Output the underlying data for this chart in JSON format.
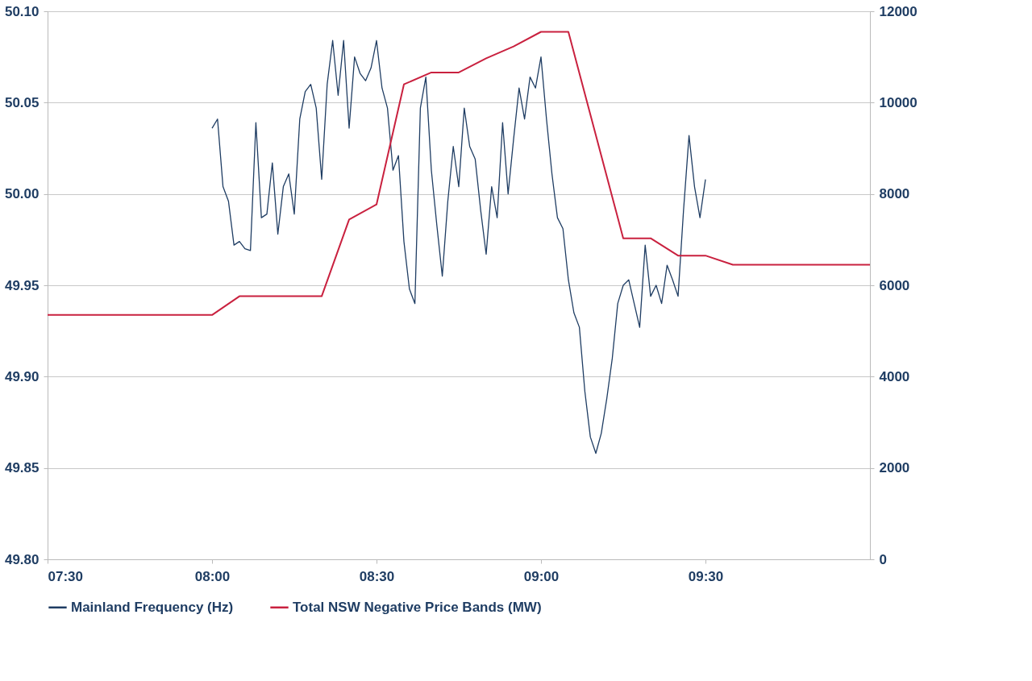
{
  "chart_data": {
    "type": "line",
    "xlim": [
      7.5,
      10
    ],
    "xticks": [
      {
        "value": 7.5,
        "label": "07:30"
      },
      {
        "value": 8,
        "label": "08:00"
      },
      {
        "value": 8.5,
        "label": "08:30"
      },
      {
        "value": 9,
        "label": "09:00"
      },
      {
        "value": 9.5,
        "label": "09:30"
      }
    ],
    "ylim": [
      49.8,
      50.1
    ],
    "yticks": [
      {
        "value": 49.8,
        "label": "49.80"
      },
      {
        "value": 49.85,
        "label": "49.85"
      },
      {
        "value": 49.9,
        "label": "49.90"
      },
      {
        "value": 49.95,
        "label": "49.95"
      },
      {
        "value": 50,
        "label": "50.00"
      },
      {
        "value": 50.05,
        "label": "50.05"
      },
      {
        "value": 50.1,
        "label": "50.10"
      }
    ],
    "y2lim": [
      0,
      12000
    ],
    "y2ticks": [
      0,
      2000,
      4000,
      6000,
      8000,
      10000,
      12000
    ],
    "grid": "y",
    "legend": "bottom",
    "series": [
      {
        "name": "Mainland Frequency (Hz)",
        "color": "#1f3d63",
        "x": [
          8,
          8.0167,
          8.0333,
          8.05,
          8.0667,
          8.0833,
          8.1,
          8.1167,
          8.1333,
          8.15,
          8.1667,
          8.1833,
          8.2,
          8.2167,
          8.2333,
          8.25,
          8.2667,
          8.2833,
          8.3,
          8.3167,
          8.3333,
          8.35,
          8.3667,
          8.3833,
          8.4,
          8.4167,
          8.4333,
          8.45,
          8.4667,
          8.4833,
          8.5,
          8.5167,
          8.5333,
          8.55,
          8.5667,
          8.5833,
          8.6,
          8.6167,
          8.6333,
          8.65,
          8.6667,
          8.6833,
          8.7,
          8.7167,
          8.7333,
          8.75,
          8.7667,
          8.7833,
          8.8,
          8.8167,
          8.8333,
          8.85,
          8.8667,
          8.8833,
          8.9,
          8.9167,
          8.9333,
          8.95,
          8.9667,
          8.9833,
          9,
          9.0167,
          9.0333,
          9.05,
          9.0667,
          9.0833,
          9.1,
          9.1167,
          9.1333,
          9.15,
          9.1667,
          9.1833,
          9.2,
          9.2167,
          9.2333,
          9.25,
          9.2667,
          9.2833,
          9.3,
          9.3167,
          9.3333,
          9.35,
          9.3667,
          9.3833,
          9.4,
          9.4167,
          9.4333,
          9.45,
          9.4667,
          9.4833,
          9.5
        ],
        "values": [
          50.036,
          50.041,
          50.004,
          49.996,
          49.972,
          49.974,
          49.97,
          49.969,
          50.039,
          49.987,
          49.989,
          50.017,
          49.978,
          50.004,
          50.011,
          49.989,
          50.041,
          50.056,
          50.06,
          50.047,
          50.008,
          50.06,
          50.084,
          50.054,
          50.084,
          50.036,
          50.075,
          50.066,
          50.062,
          50.069,
          50.084,
          50.058,
          50.047,
          50.013,
          50.021,
          49.974,
          49.948,
          49.94,
          50.047,
          50.064,
          50.013,
          49.983,
          49.955,
          49.996,
          50.026,
          50.004,
          50.047,
          50.026,
          50.019,
          49.991,
          49.967,
          50.004,
          49.987,
          50.039,
          50.0,
          50.03,
          50.058,
          50.041,
          50.064,
          50.058,
          50.075,
          50.041,
          50.011,
          49.987,
          49.981,
          49.953,
          49.935,
          49.927,
          49.892,
          49.867,
          49.858,
          49.869,
          49.888,
          49.91,
          49.94,
          49.95,
          49.953,
          49.94,
          49.927,
          49.972,
          49.944,
          49.95,
          49.94,
          49.961,
          49.953,
          49.944,
          49.991,
          50.032,
          50.004,
          49.987,
          50.008
        ]
      },
      {
        "name": "Total NSW Negative Price Bands (MW)",
        "color": "#c9213f",
        "axis": "y2",
        "x": [
          7.5,
          8,
          8.0833,
          8.3333,
          8.4167,
          8.5,
          8.5833,
          8.6667,
          8.75,
          8.8333,
          8.9167,
          9,
          9.0833,
          9.25,
          9.3333,
          9.4167,
          9.5,
          9.5833,
          10
        ],
        "values": [
          5350,
          5350,
          5760,
          5760,
          7440,
          7770,
          10400,
          10660,
          10660,
          10970,
          11230,
          11550,
          11550,
          7030,
          7030,
          6650,
          6650,
          6450,
          6450
        ]
      }
    ]
  }
}
